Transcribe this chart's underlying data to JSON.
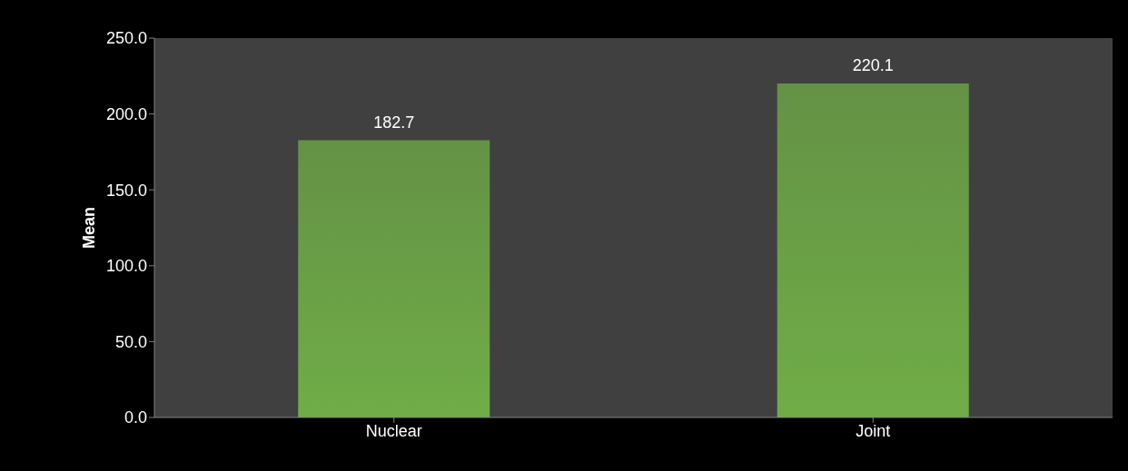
{
  "chart_data": {
    "type": "bar",
    "ylabel": "Mean",
    "categories": [
      "Nuclear",
      "Joint"
    ],
    "values": [
      182.7,
      220.1
    ],
    "color": "#70ad47",
    "ylim": [
      0,
      250
    ],
    "yticks": [
      {
        "value": 0,
        "label": "0.0"
      },
      {
        "value": 50,
        "label": "50.0"
      },
      {
        "value": 100,
        "label": "100.0"
      },
      {
        "value": 150,
        "label": "150.0"
      },
      {
        "value": 200,
        "label": "200.0"
      },
      {
        "value": 250,
        "label": "250.0"
      }
    ],
    "grid": false,
    "legend": false,
    "data_labels": true
  }
}
